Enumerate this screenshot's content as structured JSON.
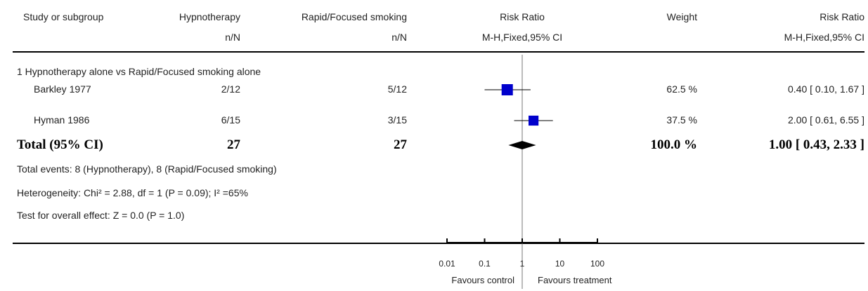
{
  "header": {
    "study": "Study or subgroup",
    "group1": "Hypnotherapy",
    "group2": "Rapid/Focused smoking",
    "effect_measure": "Risk Ratio",
    "weight": "Weight",
    "effect_measure_right": "Risk Ratio",
    "g1_sub": "n/N",
    "g2_sub": "n/N",
    "method_mid": "M-H,Fixed,95% CI",
    "method_right": "M-H,Fixed,95% CI"
  },
  "subgroup_title": "1 Hypnotherapy alone vs Rapid/Focused smoking alone",
  "studies": [
    {
      "name": "Barkley 1977",
      "g1": "2/12",
      "g2": "5/12",
      "weight": "62.5 %",
      "ci_text": "0.40 [ 0.10, 1.67 ]"
    },
    {
      "name": "Hyman 1986",
      "g1": "6/15",
      "g2": "3/15",
      "weight": "37.5 %",
      "ci_text": "2.00 [ 0.61, 6.55 ]"
    }
  ],
  "total": {
    "label": "Total (95% CI)",
    "g1": "27",
    "g2": "27",
    "weight": "100.0 %",
    "ci_text": "1.00 [ 0.43, 2.33 ]"
  },
  "footnotes": {
    "events": "Total events: 8 (Hypnotherapy), 8 (Rapid/Focused smoking)",
    "heterogeneity": "Heterogeneity: Chi² = 2.88, df = 1 (P = 0.09); I² =65%",
    "overall": "Test for overall effect: Z = 0.0 (P = 1.0)"
  },
  "axis_labels": {
    "left": "Favours control",
    "right": "Favours treatment"
  },
  "chart_data": {
    "type": "forest",
    "scale": "log",
    "xlim": [
      0.01,
      100
    ],
    "ticks": [
      0.01,
      0.1,
      1,
      10,
      100
    ],
    "tick_labels": [
      "0.01",
      "0.1",
      "1",
      "10",
      "100"
    ],
    "null_line": 1,
    "marker_color": "#0000cc",
    "studies": [
      {
        "name": "Barkley 1977",
        "estimate": 0.4,
        "lower": 0.1,
        "upper": 1.67,
        "weight": 62.5
      },
      {
        "name": "Hyman 1986",
        "estimate": 2.0,
        "lower": 0.61,
        "upper": 6.55,
        "weight": 37.5
      }
    ],
    "pooled": {
      "estimate": 1.0,
      "lower": 0.43,
      "upper": 2.33
    }
  }
}
